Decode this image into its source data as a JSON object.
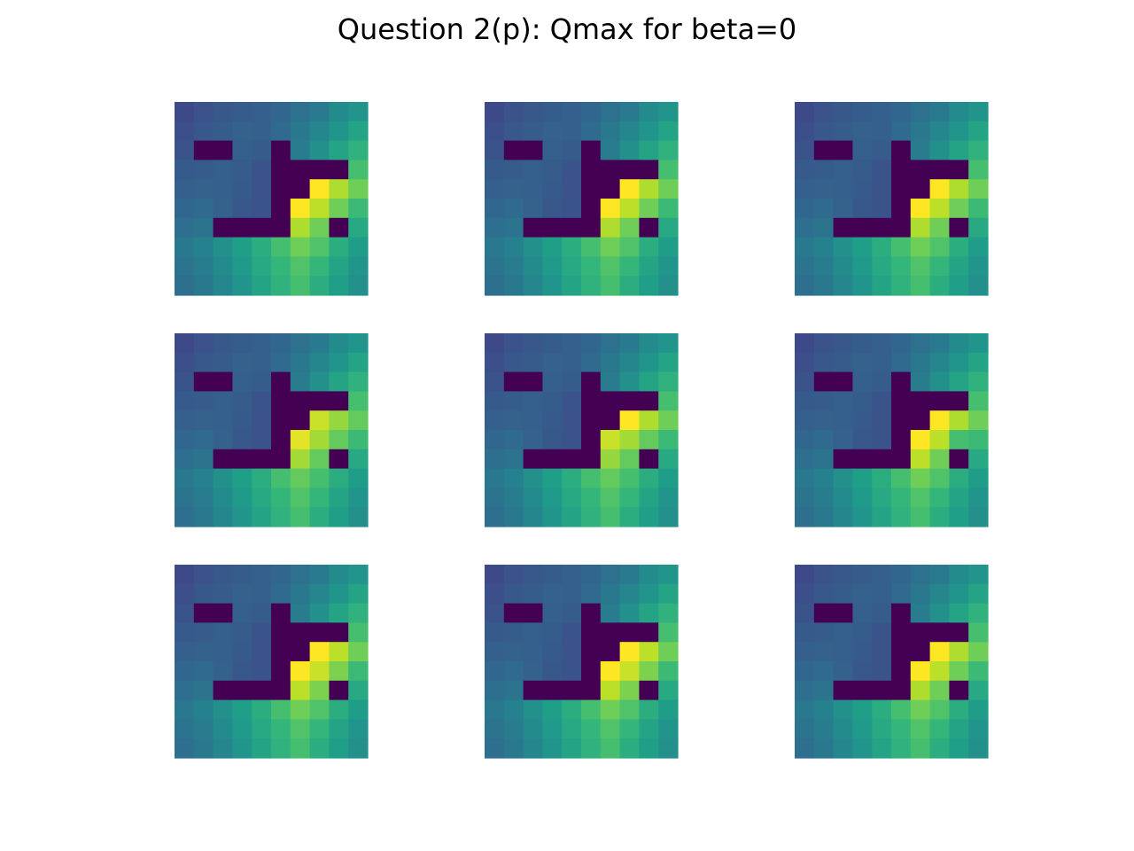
{
  "title": "Question 2(p): Qmax for beta=0",
  "chart_data": {
    "type": "heatmap",
    "colormap": "viridis",
    "layout": "3x3",
    "grid": false,
    "axes_visible": false,
    "vmin": 0,
    "vmax": 1,
    "panels": [
      [
        [
          0.22,
          0.25,
          0.27,
          0.29,
          0.3,
          0.33,
          0.37,
          0.41,
          0.48,
          0.52
        ],
        [
          0.24,
          0.27,
          0.29,
          0.31,
          0.3,
          0.34,
          0.4,
          0.46,
          0.52,
          0.58
        ],
        [
          0.26,
          0.0,
          0.0,
          0.3,
          0.29,
          0.0,
          0.42,
          0.5,
          0.58,
          0.64
        ],
        [
          0.28,
          0.29,
          0.3,
          0.29,
          0.26,
          0.0,
          0.0,
          0.0,
          0.0,
          0.7
        ],
        [
          0.3,
          0.31,
          0.3,
          0.28,
          0.25,
          0.0,
          0.0,
          1.0,
          0.88,
          0.78
        ],
        [
          0.33,
          0.34,
          0.31,
          0.27,
          0.26,
          0.0,
          1.0,
          0.9,
          0.78,
          0.68
        ],
        [
          0.36,
          0.38,
          0.0,
          0.0,
          0.0,
          0.0,
          0.88,
          0.78,
          0.0,
          0.6
        ],
        [
          0.4,
          0.44,
          0.5,
          0.56,
          0.62,
          0.7,
          0.78,
          0.72,
          0.62,
          0.55
        ],
        [
          0.38,
          0.42,
          0.48,
          0.54,
          0.6,
          0.66,
          0.72,
          0.66,
          0.58,
          0.52
        ],
        [
          0.36,
          0.4,
          0.46,
          0.52,
          0.58,
          0.64,
          0.7,
          0.62,
          0.56,
          0.5
        ]
      ],
      [
        [
          0.22,
          0.25,
          0.27,
          0.29,
          0.3,
          0.33,
          0.37,
          0.41,
          0.48,
          0.52
        ],
        [
          0.24,
          0.27,
          0.29,
          0.31,
          0.3,
          0.34,
          0.4,
          0.46,
          0.52,
          0.58
        ],
        [
          0.26,
          0.0,
          0.0,
          0.3,
          0.29,
          0.0,
          0.42,
          0.5,
          0.58,
          0.64
        ],
        [
          0.28,
          0.29,
          0.3,
          0.29,
          0.26,
          0.0,
          0.0,
          0.0,
          0.0,
          0.7
        ],
        [
          0.3,
          0.31,
          0.3,
          0.28,
          0.25,
          0.0,
          0.0,
          1.0,
          0.88,
          0.78
        ],
        [
          0.33,
          0.34,
          0.31,
          0.27,
          0.26,
          0.0,
          1.0,
          0.9,
          0.78,
          0.68
        ],
        [
          0.36,
          0.38,
          0.0,
          0.0,
          0.0,
          0.0,
          0.88,
          0.78,
          0.0,
          0.6
        ],
        [
          0.4,
          0.44,
          0.5,
          0.56,
          0.62,
          0.7,
          0.78,
          0.72,
          0.62,
          0.55
        ],
        [
          0.38,
          0.42,
          0.48,
          0.54,
          0.6,
          0.66,
          0.72,
          0.66,
          0.58,
          0.52
        ],
        [
          0.36,
          0.4,
          0.46,
          0.52,
          0.58,
          0.64,
          0.7,
          0.62,
          0.56,
          0.5
        ]
      ],
      [
        [
          0.22,
          0.25,
          0.27,
          0.29,
          0.3,
          0.33,
          0.37,
          0.41,
          0.48,
          0.52
        ],
        [
          0.24,
          0.27,
          0.29,
          0.31,
          0.3,
          0.34,
          0.4,
          0.46,
          0.52,
          0.58
        ],
        [
          0.26,
          0.0,
          0.0,
          0.3,
          0.29,
          0.0,
          0.42,
          0.5,
          0.58,
          0.64
        ],
        [
          0.28,
          0.29,
          0.3,
          0.29,
          0.26,
          0.0,
          0.0,
          0.0,
          0.0,
          0.7
        ],
        [
          0.3,
          0.31,
          0.3,
          0.28,
          0.25,
          0.0,
          0.0,
          1.0,
          0.88,
          0.78
        ],
        [
          0.33,
          0.34,
          0.31,
          0.27,
          0.26,
          0.0,
          1.0,
          0.9,
          0.78,
          0.68
        ],
        [
          0.36,
          0.38,
          0.0,
          0.0,
          0.0,
          0.0,
          0.88,
          0.78,
          0.0,
          0.6
        ],
        [
          0.4,
          0.44,
          0.5,
          0.56,
          0.62,
          0.7,
          0.78,
          0.72,
          0.62,
          0.55
        ],
        [
          0.38,
          0.42,
          0.48,
          0.54,
          0.6,
          0.66,
          0.72,
          0.66,
          0.58,
          0.52
        ],
        [
          0.36,
          0.4,
          0.46,
          0.52,
          0.58,
          0.64,
          0.7,
          0.62,
          0.56,
          0.5
        ]
      ],
      [
        [
          0.22,
          0.25,
          0.27,
          0.29,
          0.3,
          0.33,
          0.37,
          0.41,
          0.48,
          0.52
        ],
        [
          0.24,
          0.27,
          0.29,
          0.31,
          0.3,
          0.34,
          0.4,
          0.46,
          0.52,
          0.58
        ],
        [
          0.26,
          0.0,
          0.0,
          0.3,
          0.29,
          0.0,
          0.42,
          0.5,
          0.58,
          0.64
        ],
        [
          0.28,
          0.29,
          0.3,
          0.29,
          0.26,
          0.0,
          0.0,
          0.0,
          0.0,
          0.7
        ],
        [
          0.3,
          0.31,
          0.3,
          0.28,
          0.25,
          0.0,
          0.0,
          0.92,
          0.84,
          0.76
        ],
        [
          0.33,
          0.34,
          0.31,
          0.27,
          0.26,
          0.0,
          0.96,
          0.86,
          0.76,
          0.68
        ],
        [
          0.36,
          0.38,
          0.0,
          0.0,
          0.0,
          0.0,
          0.86,
          0.76,
          0.0,
          0.6
        ],
        [
          0.4,
          0.44,
          0.5,
          0.56,
          0.62,
          0.7,
          0.76,
          0.7,
          0.62,
          0.55
        ],
        [
          0.38,
          0.42,
          0.48,
          0.54,
          0.6,
          0.66,
          0.72,
          0.66,
          0.58,
          0.52
        ],
        [
          0.36,
          0.4,
          0.46,
          0.52,
          0.58,
          0.64,
          0.7,
          0.62,
          0.56,
          0.5
        ]
      ],
      [
        [
          0.22,
          0.25,
          0.27,
          0.29,
          0.3,
          0.33,
          0.37,
          0.41,
          0.48,
          0.52
        ],
        [
          0.24,
          0.27,
          0.29,
          0.31,
          0.3,
          0.34,
          0.4,
          0.46,
          0.52,
          0.58
        ],
        [
          0.26,
          0.0,
          0.0,
          0.3,
          0.29,
          0.0,
          0.42,
          0.5,
          0.58,
          0.64
        ],
        [
          0.28,
          0.29,
          0.3,
          0.29,
          0.26,
          0.0,
          0.0,
          0.0,
          0.0,
          0.7
        ],
        [
          0.3,
          0.31,
          0.3,
          0.28,
          0.25,
          0.0,
          0.0,
          1.0,
          0.88,
          0.78
        ],
        [
          0.33,
          0.34,
          0.31,
          0.27,
          0.26,
          0.0,
          0.92,
          0.86,
          0.76,
          0.68
        ],
        [
          0.36,
          0.38,
          0.0,
          0.0,
          0.0,
          0.0,
          0.84,
          0.76,
          0.0,
          0.6
        ],
        [
          0.4,
          0.44,
          0.5,
          0.56,
          0.62,
          0.7,
          0.76,
          0.7,
          0.62,
          0.55
        ],
        [
          0.38,
          0.42,
          0.48,
          0.54,
          0.6,
          0.66,
          0.72,
          0.66,
          0.58,
          0.52
        ],
        [
          0.36,
          0.4,
          0.46,
          0.52,
          0.58,
          0.64,
          0.7,
          0.62,
          0.56,
          0.5
        ]
      ],
      [
        [
          0.22,
          0.25,
          0.27,
          0.29,
          0.3,
          0.33,
          0.37,
          0.41,
          0.48,
          0.52
        ],
        [
          0.24,
          0.27,
          0.29,
          0.31,
          0.3,
          0.34,
          0.4,
          0.46,
          0.52,
          0.58
        ],
        [
          0.26,
          0.0,
          0.0,
          0.3,
          0.29,
          0.0,
          0.42,
          0.5,
          0.58,
          0.64
        ],
        [
          0.28,
          0.29,
          0.3,
          0.29,
          0.26,
          0.0,
          0.0,
          0.0,
          0.0,
          0.7
        ],
        [
          0.3,
          0.31,
          0.3,
          0.28,
          0.25,
          0.0,
          0.0,
          1.0,
          0.88,
          0.78
        ],
        [
          0.33,
          0.34,
          0.31,
          0.27,
          0.26,
          0.0,
          1.0,
          0.9,
          0.7,
          0.68
        ],
        [
          0.36,
          0.38,
          0.0,
          0.0,
          0.0,
          0.0,
          0.9,
          0.78,
          0.0,
          0.6
        ],
        [
          0.4,
          0.44,
          0.5,
          0.56,
          0.62,
          0.7,
          0.78,
          0.72,
          0.62,
          0.55
        ],
        [
          0.38,
          0.42,
          0.48,
          0.54,
          0.6,
          0.66,
          0.72,
          0.66,
          0.58,
          0.52
        ],
        [
          0.36,
          0.4,
          0.46,
          0.52,
          0.58,
          0.64,
          0.7,
          0.62,
          0.56,
          0.5
        ]
      ],
      [
        [
          0.22,
          0.25,
          0.27,
          0.29,
          0.3,
          0.33,
          0.37,
          0.41,
          0.48,
          0.52
        ],
        [
          0.24,
          0.27,
          0.29,
          0.31,
          0.3,
          0.34,
          0.4,
          0.46,
          0.52,
          0.58
        ],
        [
          0.26,
          0.0,
          0.0,
          0.3,
          0.29,
          0.0,
          0.42,
          0.5,
          0.58,
          0.64
        ],
        [
          0.28,
          0.29,
          0.3,
          0.29,
          0.26,
          0.0,
          0.0,
          0.0,
          0.0,
          0.7
        ],
        [
          0.3,
          0.31,
          0.3,
          0.28,
          0.25,
          0.0,
          0.0,
          1.0,
          0.9,
          0.78
        ],
        [
          0.33,
          0.34,
          0.31,
          0.27,
          0.26,
          0.0,
          1.0,
          0.92,
          0.8,
          0.68
        ],
        [
          0.36,
          0.38,
          0.0,
          0.0,
          0.0,
          0.0,
          0.9,
          0.8,
          0.0,
          0.6
        ],
        [
          0.4,
          0.44,
          0.5,
          0.56,
          0.62,
          0.7,
          0.78,
          0.72,
          0.62,
          0.55
        ],
        [
          0.38,
          0.42,
          0.48,
          0.54,
          0.6,
          0.66,
          0.72,
          0.66,
          0.58,
          0.52
        ],
        [
          0.36,
          0.4,
          0.46,
          0.52,
          0.58,
          0.64,
          0.7,
          0.62,
          0.56,
          0.5
        ]
      ],
      [
        [
          0.22,
          0.25,
          0.27,
          0.29,
          0.3,
          0.33,
          0.37,
          0.41,
          0.48,
          0.52
        ],
        [
          0.24,
          0.27,
          0.29,
          0.31,
          0.3,
          0.34,
          0.4,
          0.46,
          0.52,
          0.58
        ],
        [
          0.26,
          0.0,
          0.0,
          0.3,
          0.29,
          0.0,
          0.42,
          0.5,
          0.58,
          0.64
        ],
        [
          0.28,
          0.29,
          0.3,
          0.29,
          0.26,
          0.0,
          0.0,
          0.0,
          0.0,
          0.7
        ],
        [
          0.3,
          0.31,
          0.3,
          0.28,
          0.25,
          0.0,
          0.0,
          1.0,
          0.9,
          0.78
        ],
        [
          0.33,
          0.34,
          0.31,
          0.27,
          0.26,
          0.0,
          1.0,
          0.92,
          0.8,
          0.68
        ],
        [
          0.36,
          0.38,
          0.0,
          0.0,
          0.0,
          0.0,
          0.9,
          0.8,
          0.0,
          0.6
        ],
        [
          0.4,
          0.44,
          0.5,
          0.56,
          0.62,
          0.7,
          0.78,
          0.72,
          0.62,
          0.55
        ],
        [
          0.38,
          0.42,
          0.48,
          0.54,
          0.6,
          0.66,
          0.72,
          0.66,
          0.58,
          0.52
        ],
        [
          0.36,
          0.4,
          0.46,
          0.52,
          0.58,
          0.64,
          0.7,
          0.62,
          0.56,
          0.5
        ]
      ],
      [
        [
          0.22,
          0.25,
          0.27,
          0.29,
          0.3,
          0.33,
          0.37,
          0.41,
          0.48,
          0.52
        ],
        [
          0.24,
          0.27,
          0.29,
          0.31,
          0.3,
          0.34,
          0.4,
          0.46,
          0.52,
          0.58
        ],
        [
          0.26,
          0.0,
          0.0,
          0.3,
          0.29,
          0.0,
          0.42,
          0.5,
          0.58,
          0.64
        ],
        [
          0.28,
          0.29,
          0.3,
          0.29,
          0.26,
          0.0,
          0.0,
          0.0,
          0.0,
          0.7
        ],
        [
          0.3,
          0.31,
          0.3,
          0.28,
          0.25,
          0.0,
          0.0,
          1.0,
          0.88,
          0.78
        ],
        [
          0.33,
          0.34,
          0.31,
          0.27,
          0.26,
          0.0,
          1.0,
          0.9,
          0.78,
          0.68
        ],
        [
          0.36,
          0.38,
          0.0,
          0.0,
          0.0,
          0.0,
          0.88,
          0.78,
          0.0,
          0.6
        ],
        [
          0.4,
          0.44,
          0.5,
          0.56,
          0.62,
          0.7,
          0.78,
          0.72,
          0.62,
          0.55
        ],
        [
          0.38,
          0.42,
          0.48,
          0.54,
          0.6,
          0.66,
          0.72,
          0.66,
          0.58,
          0.52
        ],
        [
          0.36,
          0.4,
          0.46,
          0.52,
          0.58,
          0.64,
          0.7,
          0.62,
          0.56,
          0.5
        ]
      ]
    ]
  }
}
